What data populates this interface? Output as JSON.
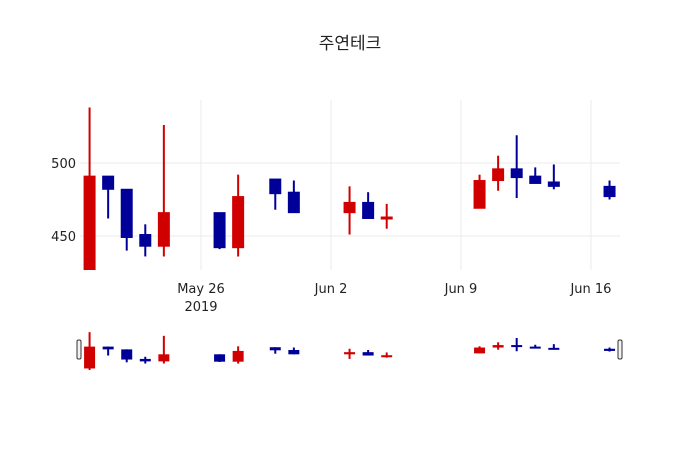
{
  "chart_data": {
    "type": "candlestick",
    "title": "주연테크",
    "xlabel": "",
    "ylabel": "",
    "ylim": [
      425,
      545
    ],
    "yticks": [
      450,
      500
    ],
    "xticks": [
      {
        "label": "May 26",
        "sublabel": "2019",
        "date": "2019-05-26"
      },
      {
        "label": "Jun 2",
        "sublabel": "",
        "date": "2019-06-02"
      },
      {
        "label": "Jun 9",
        "sublabel": "",
        "date": "2019-06-09"
      },
      {
        "label": "Jun 16",
        "sublabel": "",
        "date": "2019-06-16"
      }
    ],
    "increasing_color": "#d10000",
    "decreasing_color": "#000099",
    "grid": true,
    "rangeslider": true,
    "candles": [
      {
        "date": "2019-05-20",
        "open": 420,
        "high": 538,
        "low": 415,
        "close": 491
      },
      {
        "date": "2019-05-21",
        "open": 491,
        "high": 491,
        "low": 462,
        "close": 482
      },
      {
        "date": "2019-05-22",
        "open": 482,
        "high": 482,
        "low": 440,
        "close": 449
      },
      {
        "date": "2019-05-23",
        "open": 451,
        "high": 458,
        "low": 436,
        "close": 443
      },
      {
        "date": "2019-05-24",
        "open": 443,
        "high": 526,
        "low": 436,
        "close": 466
      },
      {
        "date": "2019-05-27",
        "open": 466,
        "high": 466,
        "low": 441,
        "close": 442
      },
      {
        "date": "2019-05-28",
        "open": 442,
        "high": 492,
        "low": 436,
        "close": 477
      },
      {
        "date": "2019-05-30",
        "open": 489,
        "high": 489,
        "low": 468,
        "close": 479
      },
      {
        "date": "2019-05-31",
        "open": 480,
        "high": 488,
        "low": 466,
        "close": 466
      },
      {
        "date": "2019-06-03",
        "open": 466,
        "high": 484,
        "low": 451,
        "close": 473
      },
      {
        "date": "2019-06-04",
        "open": 473,
        "high": 480,
        "low": 462,
        "close": 462
      },
      {
        "date": "2019-06-05",
        "open": 462,
        "high": 472,
        "low": 455,
        "close": 463
      },
      {
        "date": "2019-06-10",
        "open": 469,
        "high": 492,
        "low": 469,
        "close": 488
      },
      {
        "date": "2019-06-11",
        "open": 488,
        "high": 505,
        "low": 481,
        "close": 496
      },
      {
        "date": "2019-06-12",
        "open": 496,
        "high": 519,
        "low": 476,
        "close": 490
      },
      {
        "date": "2019-06-13",
        "open": 491,
        "high": 497,
        "low": 486,
        "close": 486
      },
      {
        "date": "2019-06-14",
        "open": 487,
        "high": 499,
        "low": 482,
        "close": 484
      },
      {
        "date": "2019-06-17",
        "open": 484,
        "high": 488,
        "low": 475,
        "close": 477
      }
    ]
  }
}
